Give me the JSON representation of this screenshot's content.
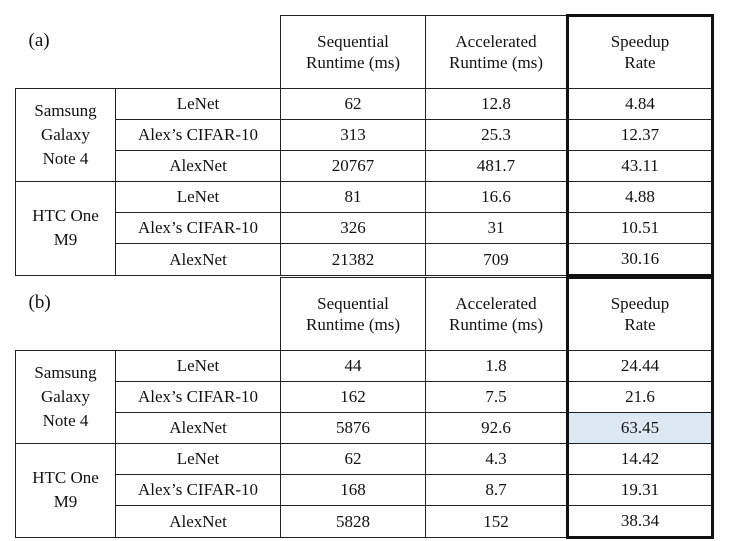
{
  "headers": {
    "sequential": "Sequential\nRuntime (ms)",
    "accelerated": "Accelerated\nRuntime (ms)",
    "speedup": "Speedup\nRate"
  },
  "tables": [
    {
      "label": "(a)",
      "groups": [
        {
          "device": "Samsung\nGalaxy\nNote 4",
          "rows": [
            {
              "model": "LeNet",
              "sequential": "62",
              "accelerated": "12.8",
              "speedup": "4.84"
            },
            {
              "model": "Alex’s CIFAR-10",
              "sequential": "313",
              "accelerated": "25.3",
              "speedup": "12.37"
            },
            {
              "model": "AlexNet",
              "sequential": "20767",
              "accelerated": "481.7",
              "speedup": "43.11"
            }
          ]
        },
        {
          "device": "HTC One\nM9",
          "rows": [
            {
              "model": "LeNet",
              "sequential": "81",
              "accelerated": "16.6",
              "speedup": "4.88"
            },
            {
              "model": "Alex’s CIFAR-10",
              "sequential": "326",
              "accelerated": "31",
              "speedup": "10.51"
            },
            {
              "model": "AlexNet",
              "sequential": "21382",
              "accelerated": "709",
              "speedup": "30.16"
            }
          ]
        }
      ]
    },
    {
      "label": "(b)",
      "groups": [
        {
          "device": "Samsung\nGalaxy\nNote 4",
          "rows": [
            {
              "model": "LeNet",
              "sequential": "44",
              "accelerated": "1.8",
              "speedup": "24.44"
            },
            {
              "model": "Alex’s CIFAR-10",
              "sequential": "162",
              "accelerated": "7.5",
              "speedup": "21.6"
            },
            {
              "model": "AlexNet",
              "sequential": "5876",
              "accelerated": "92.6",
              "speedup": "63.45",
              "highlight": true
            }
          ]
        },
        {
          "device": "HTC One\nM9",
          "rows": [
            {
              "model": "LeNet",
              "sequential": "62",
              "accelerated": "4.3",
              "speedup": "14.42"
            },
            {
              "model": "Alex’s CIFAR-10",
              "sequential": "168",
              "accelerated": "8.7",
              "speedup": "19.31"
            },
            {
              "model": "AlexNet",
              "sequential": "5828",
              "accelerated": "152",
              "speedup": "38.34"
            }
          ]
        }
      ]
    }
  ],
  "colors": {
    "border": "#222222",
    "highlight": "#dde8f5",
    "text": "#111111"
  }
}
